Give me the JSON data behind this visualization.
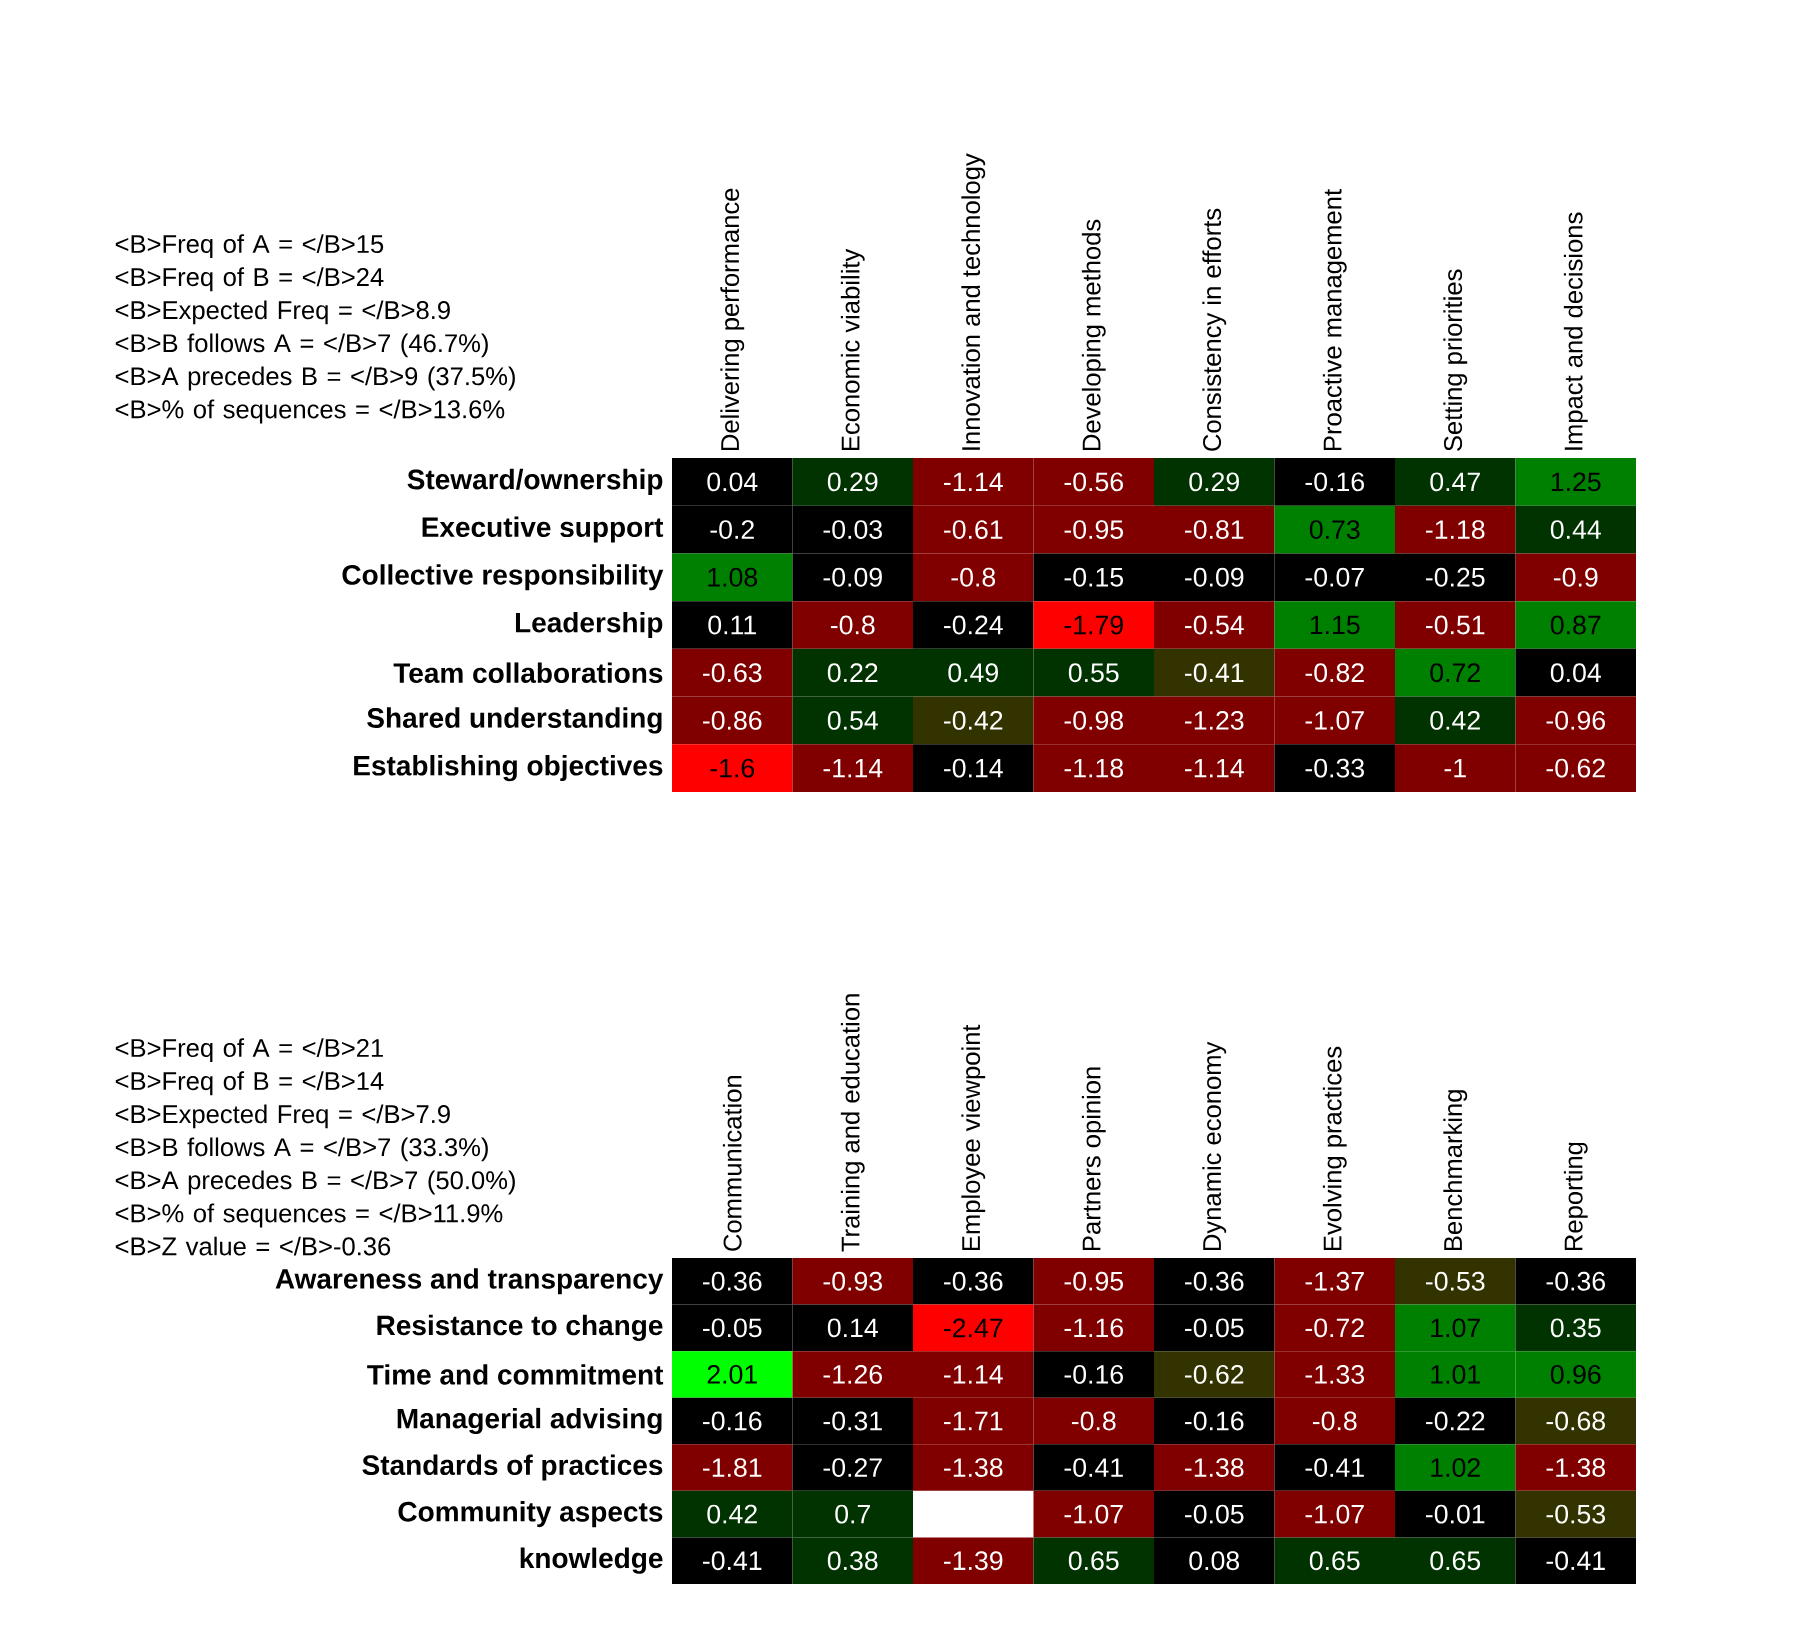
{
  "chart_data": [
    {
      "type": "heatmap",
      "annotations": [
        "<B>Freq of A = </B>15",
        "<B>Freq of B = </B>24",
        "<B>Expected Freq = </B>8.9",
        "<B>B follows A = </B>7 (46.7%)",
        "<B>A precedes B = </B>9 (37.5%)",
        "<B>% of sequences = </B>13.6%"
      ],
      "categories": [
        "Delivering performance",
        "Economic viability",
        "Innovation and technology",
        "Developing methods",
        "Consistency in efforts",
        "Proactive management",
        "Setting priorities",
        "Impact and decisions"
      ],
      "y_categories": [
        "Steward/ownership",
        "Executive support",
        "Collective responsibility",
        "Leadership",
        "Team collaborations",
        "Shared understanding",
        "Establishing objectives"
      ],
      "cells": [
        [
          0.04,
          0.29,
          -1.14,
          -0.56,
          0.29,
          -0.16,
          0.47,
          1.25
        ],
        [
          -0.2,
          -0.03,
          -0.61,
          -0.95,
          -0.81,
          0.73,
          -1.18,
          0.44
        ],
        [
          1.08,
          -0.09,
          -0.8,
          -0.15,
          -0.09,
          -0.07,
          -0.25,
          -0.9
        ],
        [
          0.11,
          -0.8,
          -0.24,
          -1.79,
          -0.54,
          1.15,
          -0.51,
          0.87
        ],
        [
          -0.63,
          0.22,
          0.49,
          0.55,
          -0.41,
          -0.82,
          0.72,
          0.04
        ],
        [
          -0.86,
          0.54,
          -0.42,
          -0.98,
          -1.23,
          -1.07,
          0.42,
          -0.96
        ],
        [
          -1.6,
          -1.14,
          -0.14,
          -1.18,
          -1.14,
          -0.33,
          -1,
          -0.62
        ]
      ],
      "colors": [
        [
          "#000000",
          "#003300",
          "#800000",
          "#800000",
          "#003300",
          "#000000",
          "#003300",
          "#008000"
        ],
        [
          "#000000",
          "#000000",
          "#800000",
          "#800000",
          "#800000",
          "#008000",
          "#800000",
          "#003300"
        ],
        [
          "#008000",
          "#000000",
          "#800000",
          "#000000",
          "#000000",
          "#000000",
          "#000000",
          "#800000"
        ],
        [
          "#000000",
          "#800000",
          "#000000",
          "#ff0000",
          "#800000",
          "#008000",
          "#800000",
          "#008000"
        ],
        [
          "#800000",
          "#003300",
          "#003300",
          "#003300",
          "#333300",
          "#800000",
          "#008000",
          "#000000"
        ],
        [
          "#800000",
          "#003300",
          "#333300",
          "#800000",
          "#800000",
          "#800000",
          "#003300",
          "#800000"
        ],
        [
          "#ff0000",
          "#800000",
          "#000000",
          "#800000",
          "#800000",
          "#000000",
          "#800000",
          "#800000"
        ]
      ],
      "data_labels": true
    },
    {
      "type": "heatmap",
      "annotations": [
        "<B>Freq of A = </B>21",
        "<B>Freq of B = </B>14",
        "<B>Expected Freq = </B>7.9",
        "<B>B follows A = </B>7 (33.3%)",
        "<B>A precedes B = </B>7 (50.0%)",
        "<B>% of sequences = </B>11.9%",
        "<B>Z value = </B>-0.36"
      ],
      "categories": [
        "Communication",
        "Training and education",
        "Employee viewpoint",
        "Partners opinion",
        "Dynamic economy",
        "Evolving practices",
        "Benchmarking",
        "Reporting"
      ],
      "y_categories": [
        "Awareness and transparency",
        "Resistance to change",
        "Time and commitment",
        "Managerial advising",
        "Standards of practices",
        "Community aspects",
        "knowledge"
      ],
      "cells": [
        [
          -0.36,
          -0.93,
          -0.36,
          -0.95,
          -0.36,
          -1.37,
          -0.53,
          -0.36
        ],
        [
          -0.05,
          0.14,
          -2.47,
          -1.16,
          -0.05,
          -0.72,
          1.07,
          0.35
        ],
        [
          2.01,
          -1.26,
          -1.14,
          -0.16,
          -0.62,
          -1.33,
          1.01,
          0.96
        ],
        [
          -0.16,
          -0.31,
          -1.71,
          -0.8,
          -0.16,
          -0.8,
          -0.22,
          -0.68
        ],
        [
          -1.81,
          -0.27,
          -1.38,
          -0.41,
          -1.38,
          -0.41,
          1.02,
          -1.38
        ],
        [
          0.42,
          0.7,
          null,
          -1.07,
          -0.05,
          -1.07,
          -0.01,
          -0.53
        ],
        [
          -0.41,
          0.38,
          -1.39,
          0.65,
          0.08,
          0.65,
          0.65,
          -0.41
        ]
      ],
      "colors": [
        [
          "#000000",
          "#800000",
          "#000000",
          "#800000",
          "#000000",
          "#800000",
          "#333300",
          "#000000"
        ],
        [
          "#000000",
          "#000000",
          "#ff0000",
          "#800000",
          "#000000",
          "#800000",
          "#008000",
          "#003300"
        ],
        [
          "#00ff00",
          "#800000",
          "#800000",
          "#000000",
          "#333300",
          "#800000",
          "#008000",
          "#008000"
        ],
        [
          "#000000",
          "#000000",
          "#800000",
          "#800000",
          "#000000",
          "#800000",
          "#000000",
          "#333300"
        ],
        [
          "#800000",
          "#000000",
          "#800000",
          "#000000",
          "#800000",
          "#000000",
          "#008000",
          "#800000"
        ],
        [
          "#003300",
          "#003300",
          null,
          "#800000",
          "#000000",
          "#800000",
          "#000000",
          "#333300"
        ],
        [
          "#000000",
          "#003300",
          "#800000",
          "#003300",
          "#000000",
          "#003300",
          "#003300",
          "#000000"
        ]
      ],
      "data_labels": true
    }
  ]
}
